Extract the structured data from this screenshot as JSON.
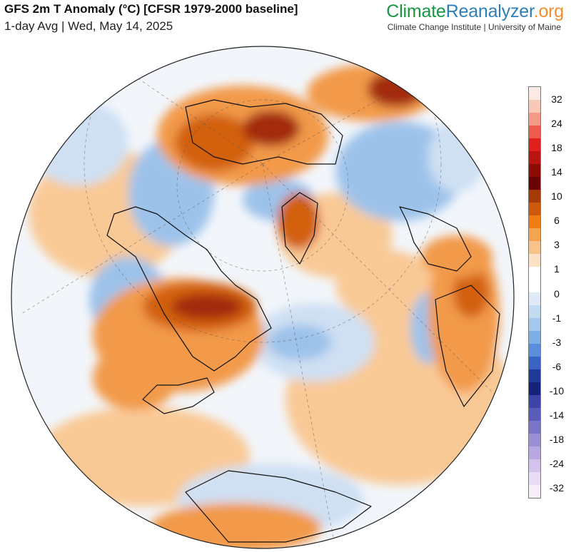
{
  "header": {
    "title": "GFS 2m T Anomaly (°C) [CFSR 1979-2000 baseline]",
    "subtitle": "1-day Avg | Wed, May 14, 2025"
  },
  "brand": {
    "part1": "Climate",
    "part2": "Reanalyzer",
    "part3": ".org",
    "tagline": "Climate Change Institute | University of Maine"
  },
  "legend": {
    "tick_labels": [
      "32",
      "24",
      "18",
      "14",
      "10",
      "6",
      "3",
      "1",
      "0",
      "-1",
      "-3",
      "-6",
      "-10",
      "-14",
      "-18",
      "-24",
      "-32"
    ],
    "colors": [
      "#fde9e4",
      "#f9c9b8",
      "#f49a86",
      "#ef5b4f",
      "#e0201c",
      "#b81410",
      "#8e0c08",
      "#6a0404",
      "#a53a05",
      "#cc5a0a",
      "#f07d14",
      "#f5a34c",
      "#f8c28a",
      "#fbe1c6",
      "#ffffff",
      "#ffffff",
      "#deebf7",
      "#c3dbf1",
      "#a3c8ec",
      "#7eaee4",
      "#5a8edb",
      "#3a64c3",
      "#1f3a96",
      "#15227a",
      "#3d44a8",
      "#5a5cba",
      "#7a75c9",
      "#9b8fd6",
      "#b7a8e1",
      "#d3c3ec",
      "#e9dcf5",
      "#f7eef9"
    ]
  },
  "map": {
    "projection": "orthographic, north-polar view",
    "fill_colors": {
      "ocean_neutral": "#f2f6fb",
      "warm_light": "#f9c995",
      "warm_mid": "#f29a4a",
      "warm_strong": "#d2600e",
      "hot": "#a3290a",
      "very_hot": "#7a1106",
      "cool_light": "#cfe0f3",
      "cool_mid": "#9dc2ea",
      "cold": "#5c8fdc",
      "very_cold": "#3c62c3"
    }
  }
}
